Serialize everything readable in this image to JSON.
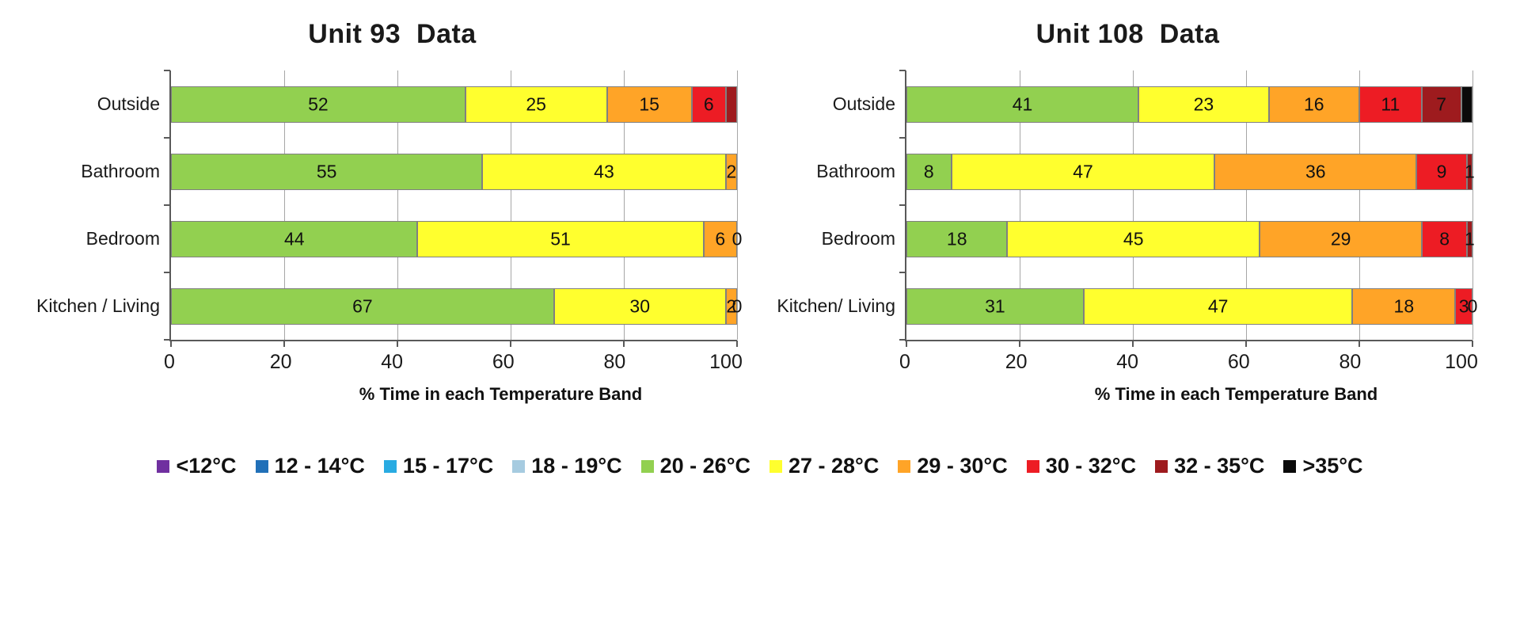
{
  "legend": {
    "bands": [
      {
        "label": "<12°C",
        "color": "#7030A0"
      },
      {
        "label": "12 - 14°C",
        "color": "#2170B8"
      },
      {
        "label": "15 - 17°C",
        "color": "#29ABE2"
      },
      {
        "label": "18 - 19°C",
        "color": "#A6CBE0"
      },
      {
        "label": "20 - 26°C",
        "color": "#92D050"
      },
      {
        "label": "27 - 28°C",
        "color": "#FFFF2E"
      },
      {
        "label": "29 - 30°C",
        "color": "#FFA427"
      },
      {
        "label": "30 - 32°C",
        "color": "#ED1C24"
      },
      {
        "label": "32 - 35°C",
        "color": "#9E1B1E"
      },
      {
        "label": ">35°C",
        "color": "#0A0A0A"
      }
    ]
  },
  "chart_data": [
    {
      "type": "bar",
      "orientation": "horizontal-stacked",
      "title": "Unit 93  Data",
      "xlabel": "% Time in each Temperature Band",
      "xlim": [
        0,
        100
      ],
      "x_ticks": [
        0,
        20,
        40,
        60,
        80,
        100
      ],
      "grid": true,
      "categories": [
        "Outside",
        "Bathroom",
        "Bedroom",
        "Kitchen / Living"
      ],
      "rows": [
        {
          "category": "Outside",
          "segments": [
            {
              "band": "20 - 26°C",
              "value": 52,
              "label": "52"
            },
            {
              "band": "27 - 28°C",
              "value": 25,
              "label": "25"
            },
            {
              "band": "29 - 30°C",
              "value": 15,
              "label": "15"
            },
            {
              "band": "30 - 32°C",
              "value": 6,
              "label": "6"
            },
            {
              "band": "32 - 35°C",
              "value": 2,
              "label": ""
            }
          ]
        },
        {
          "category": "Bathroom",
          "segments": [
            {
              "band": "20 - 26°C",
              "value": 55,
              "label": "55"
            },
            {
              "band": "27 - 28°C",
              "value": 43,
              "label": "43"
            },
            {
              "band": "29 - 30°C",
              "value": 2,
              "label": "2"
            }
          ]
        },
        {
          "category": "Bedroom",
          "segments": [
            {
              "band": "20 - 26°C",
              "value": 44,
              "label": "44"
            },
            {
              "band": "27 - 28°C",
              "value": 51,
              "label": "51"
            },
            {
              "band": "29 - 30°C",
              "value": 6,
              "label": "6"
            },
            {
              "band": "30 - 32°C",
              "value": 0,
              "label": "0"
            }
          ]
        },
        {
          "category": "Kitchen / Living",
          "segments": [
            {
              "band": "20 - 26°C",
              "value": 67,
              "label": "67"
            },
            {
              "band": "27 - 28°C",
              "value": 30,
              "label": "30"
            },
            {
              "band": "29 - 30°C",
              "value": 2,
              "label": "2"
            },
            {
              "band": "30 - 32°C",
              "value": 0,
              "label": "0"
            }
          ]
        }
      ]
    },
    {
      "type": "bar",
      "orientation": "horizontal-stacked",
      "title": "Unit 108  Data",
      "xlabel": "% Time in each Temperature Band",
      "xlim": [
        0,
        100
      ],
      "x_ticks": [
        0,
        20,
        40,
        60,
        80,
        100
      ],
      "grid": true,
      "categories": [
        "Outside",
        "Bathroom",
        "Bedroom",
        "Kitchen/ Living"
      ],
      "rows": [
        {
          "category": "Outside",
          "segments": [
            {
              "band": "20 - 26°C",
              "value": 41,
              "label": "41"
            },
            {
              "band": "27 - 28°C",
              "value": 23,
              "label": "23"
            },
            {
              "band": "29 - 30°C",
              "value": 16,
              "label": "16"
            },
            {
              "band": "30 - 32°C",
              "value": 11,
              "label": "11"
            },
            {
              "band": "32 - 35°C",
              "value": 7,
              "label": "7"
            },
            {
              "band": ">35°C",
              "value": 2,
              "label": ""
            }
          ]
        },
        {
          "category": "Bathroom",
          "segments": [
            {
              "band": "20 - 26°C",
              "value": 8,
              "label": "8"
            },
            {
              "band": "27 - 28°C",
              "value": 47,
              "label": "47"
            },
            {
              "band": "29 - 30°C",
              "value": 36,
              "label": "36"
            },
            {
              "band": "30 - 32°C",
              "value": 9,
              "label": "9"
            },
            {
              "band": "32 - 35°C",
              "value": 1,
              "label": "1"
            }
          ]
        },
        {
          "category": "Bedroom",
          "segments": [
            {
              "band": "20 - 26°C",
              "value": 18,
              "label": "18"
            },
            {
              "band": "27 - 28°C",
              "value": 45,
              "label": "45"
            },
            {
              "band": "29 - 30°C",
              "value": 29,
              "label": "29"
            },
            {
              "band": "30 - 32°C",
              "value": 8,
              "label": "8"
            },
            {
              "band": "32 - 35°C",
              "value": 1,
              "label": "1"
            }
          ]
        },
        {
          "category": "Kitchen/ Living",
          "segments": [
            {
              "band": "20 - 26°C",
              "value": 31,
              "label": "31"
            },
            {
              "band": "27 - 28°C",
              "value": 47,
              "label": "47"
            },
            {
              "band": "29 - 30°C",
              "value": 18,
              "label": "18"
            },
            {
              "band": "30 - 32°C",
              "value": 3,
              "label": "3"
            },
            {
              "band": "32 - 35°C",
              "value": 0,
              "label": "0"
            }
          ]
        }
      ]
    }
  ]
}
